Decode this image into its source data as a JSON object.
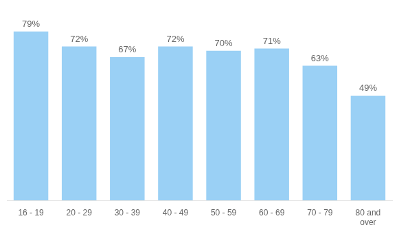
{
  "chart_data": {
    "type": "bar",
    "categories": [
      "16 - 19",
      "20 - 29",
      "30 - 39",
      "40 - 49",
      "50 - 59",
      "60 - 69",
      "70 - 79",
      "80 and\nover"
    ],
    "values": [
      79,
      72,
      67,
      72,
      70,
      71,
      63,
      49
    ],
    "value_labels": [
      "79%",
      "72%",
      "67%",
      "72%",
      "70%",
      "71%",
      "63%",
      "49%"
    ],
    "data_labels": true,
    "ylim": [
      0,
      86
    ],
    "grid": false,
    "tick_labels": "x"
  }
}
